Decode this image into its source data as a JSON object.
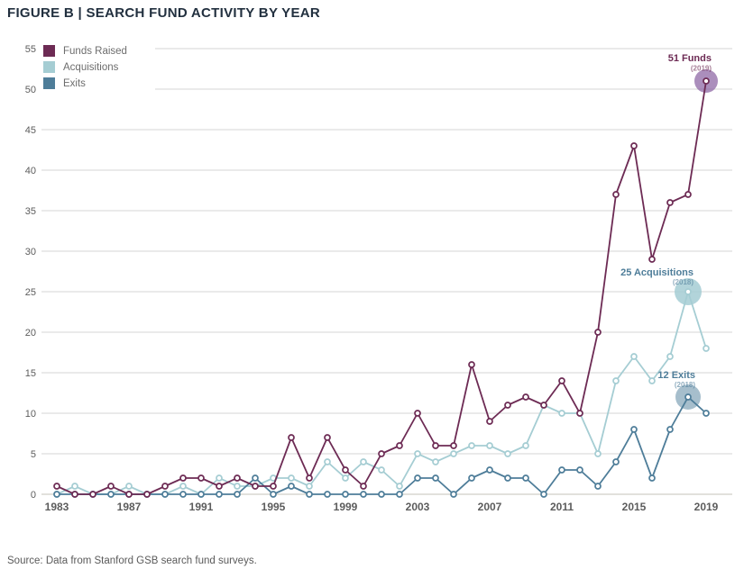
{
  "title": "FIGURE B | SEARCH FUND ACTIVITY BY YEAR",
  "source": "Source: Data from Stanford GSB search fund surveys.",
  "legend": [
    {
      "label": "Funds Raised",
      "color": "#6d2b54"
    },
    {
      "label": "Acquisitions",
      "color": "#a5cdd3"
    },
    {
      "label": "Exits",
      "color": "#4e7d99"
    }
  ],
  "colors": {
    "title_text": "#22303f",
    "tick_text": "#5c5c5c",
    "gridline": "#d5d5d5",
    "baseline": "#c6c3ba",
    "funds_raised": "#6d2b54",
    "acquisitions": "#a5cdd3",
    "exits": "#4e7d99",
    "halo_funds": "#8a63a2",
    "halo_acquisitions": "#a5cdd3",
    "halo_exits": "#4e7d99",
    "annotation_funds_text": "#6d2b54",
    "annotation_exits_text": "#4e7d99"
  },
  "chart_data": {
    "type": "line",
    "title": "FIGURE B | SEARCH FUND ACTIVITY BY YEAR",
    "xlabel": "",
    "ylabel": "",
    "ylim": [
      0,
      55
    ],
    "y_ticks": [
      0,
      5,
      10,
      15,
      20,
      25,
      30,
      35,
      40,
      45,
      50,
      55
    ],
    "x_ticks": [
      1983,
      1987,
      1991,
      1995,
      1999,
      2003,
      2007,
      2011,
      2015,
      2019
    ],
    "grid": "horizontal",
    "legend_position": "top-left",
    "x": [
      1983,
      1984,
      1985,
      1986,
      1987,
      1988,
      1989,
      1990,
      1991,
      1992,
      1993,
      1994,
      1995,
      1996,
      1997,
      1998,
      1999,
      2000,
      2001,
      2002,
      2003,
      2004,
      2005,
      2006,
      2007,
      2008,
      2009,
      2010,
      2011,
      2012,
      2013,
      2014,
      2015,
      2016,
      2017,
      2018,
      2019
    ],
    "series": [
      {
        "name": "Funds Raised",
        "color": "#6d2b54",
        "values": [
          1,
          0,
          0,
          1,
          0,
          0,
          1,
          2,
          2,
          1,
          2,
          1,
          1,
          7,
          2,
          7,
          3,
          1,
          5,
          6,
          10,
          6,
          6,
          16,
          9,
          11,
          12,
          11,
          14,
          10,
          20,
          37,
          43,
          29,
          36,
          37,
          51
        ]
      },
      {
        "name": "Acquisitions",
        "color": "#a5cdd3",
        "values": [
          0,
          1,
          0,
          0,
          1,
          0,
          0,
          1,
          0,
          2,
          1,
          1,
          2,
          2,
          1,
          4,
          2,
          4,
          3,
          1,
          5,
          4,
          5,
          6,
          6,
          5,
          6,
          11,
          10,
          10,
          5,
          14,
          17,
          14,
          17,
          25,
          18
        ]
      },
      {
        "name": "Exits",
        "color": "#4e7d99",
        "values": [
          0,
          0,
          0,
          0,
          0,
          0,
          0,
          0,
          0,
          0,
          0,
          2,
          0,
          1,
          0,
          0,
          0,
          0,
          0,
          0,
          2,
          2,
          0,
          2,
          3,
          2,
          2,
          0,
          3,
          3,
          1,
          4,
          8,
          2,
          8,
          12,
          10
        ]
      }
    ],
    "annotations": [
      {
        "label": "51 Funds",
        "sublabel": "(2019)",
        "year": 2019,
        "value": 51,
        "series": "Funds Raised",
        "text_color": "#6d2b54",
        "halo_color": "#8a63a2"
      },
      {
        "label": "25 Acquisitions",
        "sublabel": "(2018)",
        "year": 2018,
        "value": 25,
        "series": "Acquisitions",
        "text_color": "#4e7d99",
        "halo_color": "#a5cdd3"
      },
      {
        "label": "12 Exits",
        "sublabel": "(2018)",
        "year": 2018,
        "value": 12,
        "series": "Exits",
        "text_color": "#4e7d99",
        "halo_color": "#4e7d99"
      }
    ]
  }
}
